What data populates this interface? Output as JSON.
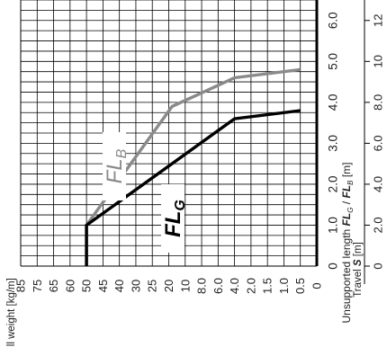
{
  "chart_data": {
    "type": "line",
    "orientation": "rotated-90-ccw",
    "x_axis": {
      "label_parts": [
        "Unsupported length ",
        "FL",
        "G",
        " / ",
        "FL",
        "B",
        " [m]"
      ],
      "ticks": [
        "0",
        "1.0",
        "2.0",
        "3.0",
        "4.0",
        "5.0",
        "6.0"
      ],
      "range": [
        0,
        6.5
      ]
    },
    "travel_axis": {
      "label_prefix": "Travel ",
      "label_var": "S",
      "label_unit": " [m]",
      "ticks": [
        "0",
        "2.0",
        "4.0",
        "6.0",
        "8.0",
        "10",
        "12"
      ]
    },
    "y_axis": {
      "label": "Fill weight [kg/m]",
      "ticks": [
        "85",
        "75",
        "65",
        "60",
        "50",
        "45",
        "40",
        "30",
        "25",
        "20",
        "10",
        "8.0",
        "6.0",
        "4.0",
        "2.0",
        "1.5",
        "1.0",
        "0.5",
        "0"
      ],
      "tick_spacing": "category"
    },
    "series": [
      {
        "name_main": "FL",
        "name_sub": "B",
        "color": "#8a8a8a",
        "points": [
          [
            0,
            4
          ],
          [
            1.0,
            4
          ],
          [
            3.9,
            9.2
          ],
          [
            4.6,
            13
          ],
          [
            4.8,
            17
          ]
        ]
      },
      {
        "name_main": "FL",
        "name_sub": "G",
        "color": "#000000",
        "points": [
          [
            0,
            4
          ],
          [
            1.0,
            4
          ],
          [
            3.6,
            13
          ],
          [
            3.8,
            17
          ]
        ]
      }
    ],
    "grid": true
  }
}
